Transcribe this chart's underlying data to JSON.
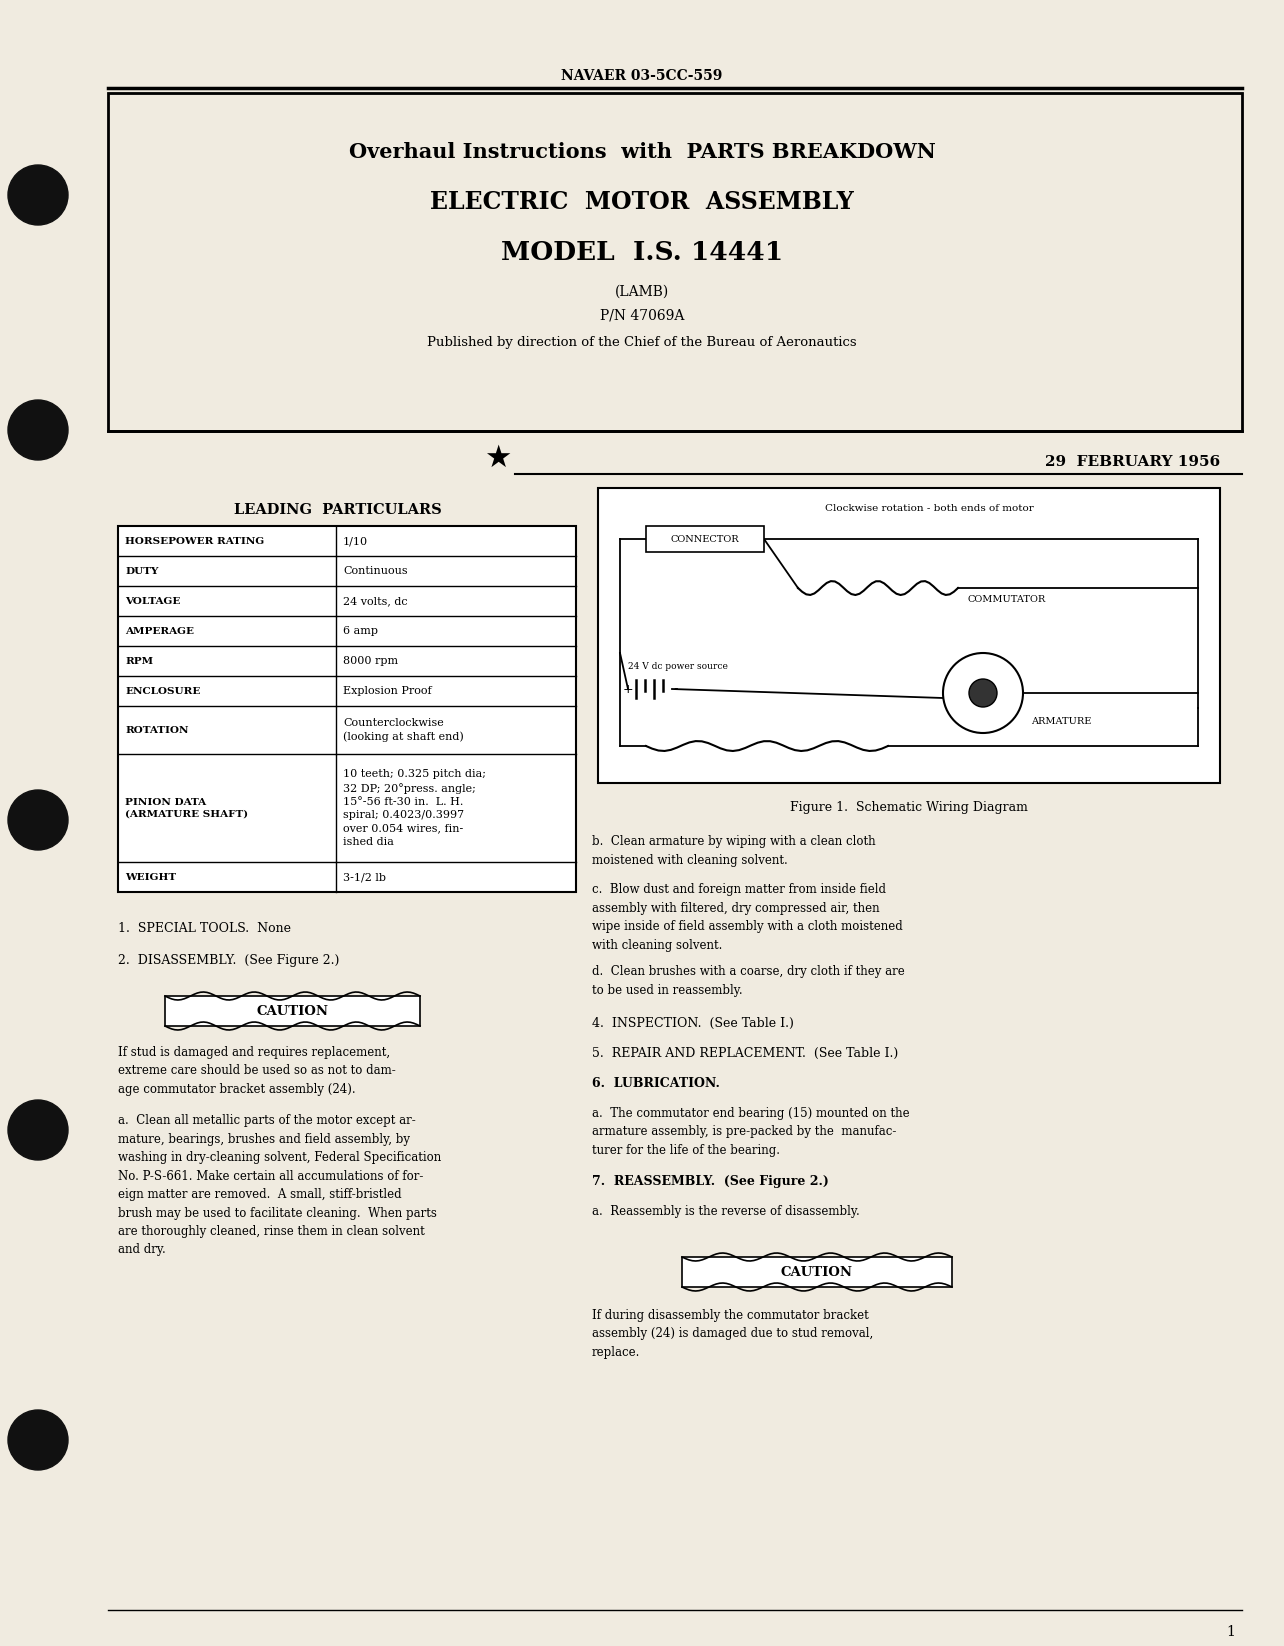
{
  "bg_color": "#f5f0e8",
  "page_bg": "#f0ebe0",
  "text_color": "#1a1a1a",
  "header_text": "NAVAER 03-5CC-559",
  "title_line1": "Overhaul Instructions  with  PARTS BREAKDOWN",
  "title_line2": "ELECTRIC  MOTOR  ASSEMBLY",
  "title_line3": "MODEL  I.S. 14441",
  "subtitle1": "(LAMB)",
  "subtitle2": "P/N 47069A",
  "subtitle3": "Published by direction of the Chief of the Bureau of Aeronautics",
  "date": "29  FEBRUARY 1956",
  "leading_particulars_title": "LEADING  PARTICULARS",
  "table_rows": [
    [
      "HORSEPOWER RATING",
      "1/10"
    ],
    [
      "DUTY",
      "Continuous"
    ],
    [
      "VOLTAGE",
      "24 volts, dc"
    ],
    [
      "AMPERAGE",
      "6 amp"
    ],
    [
      "RPM",
      "8000 rpm"
    ],
    [
      "ENCLOSURE",
      "Explosion Proof"
    ],
    [
      "ROTATION",
      "Counterclockwise\n(looking at shaft end)"
    ],
    [
      "PINION DATA\n(ARMATURE SHAFT)",
      "10 teeth; 0.325 pitch dia;\n32 DP; 20°press. angle;\n15°-56 ft-30 in.  L. H.\nspiral; 0.4023/0.3997\nover 0.054 wires, fin-\nished dia"
    ],
    [
      "WEIGHT",
      "3-1/2 lb"
    ]
  ],
  "section1": "1.  SPECIAL TOOLS.  None",
  "section2": "2.  DISASSEMBLY.  (See Figure 2.)",
  "caution1": "CAUTION",
  "caution1_text": "If stud is damaged and requires replacement,\nextreme care should be used so as not to dam-\nage commutator bracket assembly (24).",
  "para_a_left": "a.  Clean all metallic parts of the motor except ar-\nmature, bearings, brushes and field assembly, by\nwashing in dry-cleaning solvent, Federal Specification\nNo. P-S-661. Make certain all accumulations of for-\neign matter are removed.  A small, stiff-bristled\nbrush may be used to facilitate cleaning.  When parts\nare thoroughly cleaned, rinse them in clean solvent\nand dry.",
  "fig1_caption": "Figure 1.  Schematic Wiring Diagram",
  "fig1_note": "Clockwise rotation - both ends of motor",
  "right_col_b": "b.  Clean armature by wiping with a clean cloth\nmoistened with cleaning solvent.",
  "right_col_c": "c.  Blow dust and foreign matter from inside field\nassembly with filtered, dry compressed air, then\nwipe inside of field assembly with a cloth moistened\nwith cleaning solvent.",
  "right_col_d": "d.  Clean brushes with a coarse, dry cloth if they are\nto be used in reassembly.",
  "section4": "4.  INSPECTION.  (See Table I.)",
  "section5": "5.  REPAIR AND REPLACEMENT.  (See Table I.)",
  "section6": "6.  LUBRICATION.",
  "right_col_6a": "a.  The commutator end bearing (15) mounted on the\narmature assembly, is pre-packed by the  manufac-\nturer for the life of the bearing.",
  "section7": "7.  REASSEMBLY.  (See Figure 2.)",
  "right_col_7a": "a.  Reassembly is the reverse of disassembly.",
  "caution2": "CAUTION",
  "caution2_text": "If during disassembly the commutator bracket\nassembly (24) is damaged due to stud removal,\nreplace.",
  "page_num": "1"
}
